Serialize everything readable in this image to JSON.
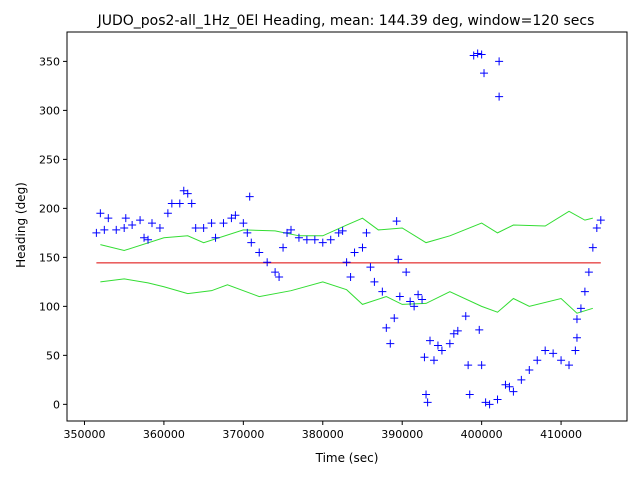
{
  "chart_data": {
    "type": "scatter",
    "title": "JUDO_pos2-all_1Hz_0El Heading, mean: 144.39 deg, window=120 secs",
    "x_label": "Time (sec)",
    "y_label": "Heading (deg)",
    "xlim": [
      347800,
      418300
    ],
    "ylim": [
      -17,
      380
    ],
    "xticks": [
      350000,
      360000,
      370000,
      380000,
      390000,
      400000,
      410000
    ],
    "yticks": [
      0,
      50,
      100,
      150,
      200,
      250,
      300,
      350
    ],
    "series": [
      {
        "style": "marker",
        "color": "#0000ff",
        "x": [
          351500,
          352000,
          352500,
          353000,
          354000,
          355000,
          355200,
          356000,
          357000,
          357500,
          358000,
          358500,
          359500,
          360500,
          361000,
          362000,
          362500,
          363000,
          363500,
          364000,
          365000,
          366000,
          366500,
          367500,
          368500,
          369000,
          370000,
          370500,
          370800,
          371000,
          372000,
          373000,
          374000,
          374500,
          375000,
          375500,
          376000,
          377000,
          378000,
          379000,
          380000,
          381000,
          382000,
          382500,
          383000,
          383500,
          384000,
          385000,
          385500,
          386000,
          386500,
          387500,
          388000,
          388500,
          389000,
          389300,
          389500,
          389700,
          390500,
          391000,
          391500,
          392000,
          392500,
          392800,
          393000,
          393200,
          393500,
          394000,
          394500,
          395000,
          396000,
          396500,
          397000,
          398000,
          398300,
          398500,
          399000,
          399500,
          399700,
          400000,
          400000,
          400300,
          400500,
          401000,
          402000,
          402200,
          402200,
          403000,
          403500,
          404000,
          405000,
          406000,
          407000,
          408000,
          409000,
          410000,
          411000,
          411800,
          412000,
          412000,
          412500,
          413000,
          413500,
          414000,
          414500,
          415000
        ],
        "values": [
          175,
          195,
          178,
          190,
          178,
          180,
          190,
          183,
          188,
          170,
          168,
          185,
          180,
          195,
          205,
          205,
          218,
          215,
          205,
          180,
          180,
          185,
          170,
          185,
          190,
          193,
          185,
          175,
          212,
          165,
          155,
          145,
          135,
          130,
          160,
          175,
          178,
          170,
          168,
          168,
          165,
          168,
          175,
          177,
          145,
          130,
          155,
          160,
          175,
          140,
          125,
          115,
          78,
          62,
          88,
          187,
          148,
          110,
          135,
          105,
          100,
          112,
          107,
          48,
          10,
          2,
          65,
          45,
          60,
          55,
          62,
          72,
          75,
          90,
          40,
          10,
          356,
          358,
          76,
          357,
          40,
          338,
          2,
          0,
          5,
          350,
          314,
          20,
          18,
          13,
          25,
          35,
          45,
          55,
          52,
          45,
          40,
          55,
          68,
          87,
          98,
          115,
          135,
          160,
          180,
          188
        ]
      },
      {
        "style": "line",
        "color": "#33dd33",
        "x": [
          352000,
          355000,
          360000,
          363000,
          365000,
          370000,
          374000,
          377000,
          380000,
          383000,
          385000,
          387000,
          390000,
          393000,
          396000,
          400000,
          402000,
          404000,
          408000,
          411000,
          413000,
          414000
        ],
        "values": [
          163,
          157,
          170,
          172,
          165,
          178,
          177,
          172,
          172,
          183,
          190,
          178,
          180,
          165,
          172,
          185,
          175,
          183,
          182,
          197,
          188,
          190
        ]
      },
      {
        "style": "line",
        "color": "#33dd33",
        "x": [
          352000,
          355000,
          358000,
          360000,
          363000,
          366000,
          368000,
          372000,
          376000,
          380000,
          383000,
          385000,
          388000,
          390000,
          393000,
          396000,
          400000,
          402000,
          404000,
          406000,
          410000,
          412000,
          414000
        ],
        "values": [
          125,
          128,
          124,
          120,
          113,
          116,
          122,
          110,
          116,
          125,
          117,
          102,
          110,
          102,
          103,
          115,
          100,
          94,
          108,
          100,
          108,
          93,
          98
        ]
      },
      {
        "style": "line",
        "color": "#dd0000",
        "x": [
          351500,
          415000
        ],
        "values": [
          144.39,
          144.39
        ]
      }
    ]
  }
}
